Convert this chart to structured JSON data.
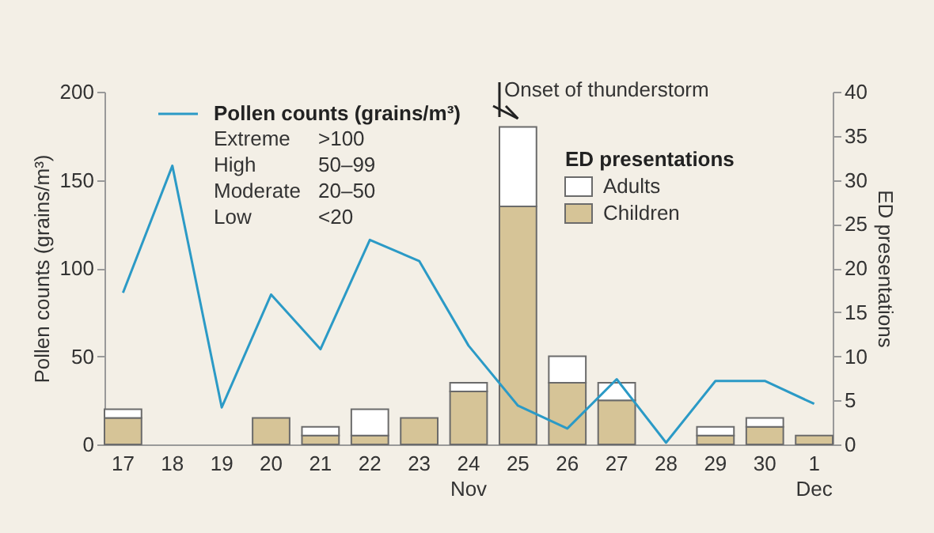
{
  "chart_data": {
    "type": "bar",
    "categories": [
      "17",
      "18",
      "19",
      "20",
      "21",
      "22",
      "23",
      "24\nNov",
      "25",
      "26",
      "27",
      "28",
      "29",
      "30",
      "1\nDec"
    ],
    "series": [
      {
        "name": "Pollen counts (grains/m³)",
        "type": "line",
        "axis": "y",
        "color": "#2b9ac6",
        "values": [
          86,
          158,
          21,
          85,
          54,
          116,
          104,
          56,
          22,
          9,
          37,
          1,
          36,
          36,
          23
        ]
      },
      {
        "name": "Children",
        "axis": "y2",
        "color": "#d6c497",
        "values": [
          3,
          0,
          0,
          3,
          1,
          1,
          3,
          6,
          27,
          7,
          5,
          0,
          1,
          2,
          1
        ]
      },
      {
        "name": "Adults",
        "axis": "y2",
        "color": "#ffffff",
        "values": [
          1,
          0,
          0,
          0,
          1,
          3,
          0,
          1,
          9,
          3,
          2,
          0,
          1,
          1,
          0
        ]
      }
    ],
    "stacked": true,
    "ylabel": "Pollen counts (grains/m³)",
    "y2label": "ED presentations",
    "ylim": [
      0,
      200
    ],
    "yticks": [
      0,
      50,
      100,
      150,
      200
    ],
    "y2lim": [
      0,
      40
    ],
    "y2ticks": [
      0,
      5,
      10,
      15,
      20,
      25,
      30,
      35,
      40
    ],
    "legend_title": "ED presentations",
    "legend": "top",
    "grid": false,
    "annotations": [
      "Extreme",
      ">100",
      "High",
      "50–99",
      "Moderate",
      "20–50",
      "Low",
      "<20"
    ],
    "ref_lines": [
      {
        "axis": "x",
        "value": "25",
        "label": "Onset of thunderstorm"
      }
    ]
  }
}
